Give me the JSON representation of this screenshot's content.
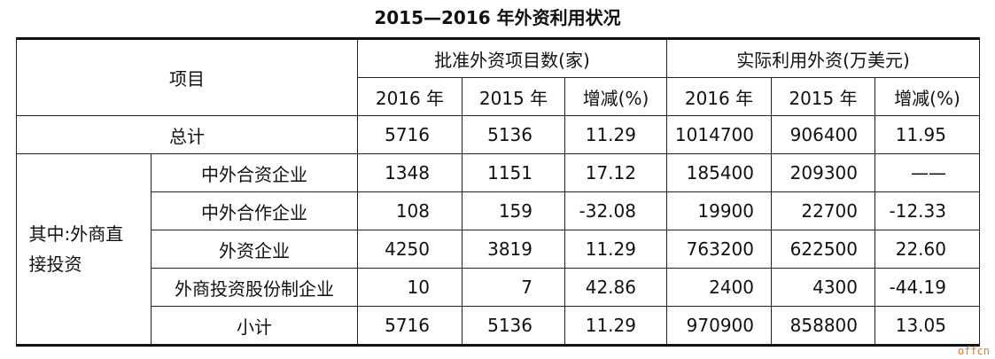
{
  "title": "2015—2016 年外资利用状况",
  "table": {
    "header": {
      "item": "项目",
      "group1": "批准外资项目数(家)",
      "group2": "实际利用外资(万美元)",
      "sub": [
        "2016 年",
        "2015 年",
        "增减(%)",
        "2016 年",
        "2015 年",
        "增减(%)"
      ]
    },
    "total": {
      "label": "总计",
      "values": [
        "5716",
        "5136",
        "11.29",
        "1014700",
        "906400",
        "11.95"
      ]
    },
    "group_label": "其中:外商直接投资",
    "rows": [
      {
        "label": "中外合资企业",
        "values": [
          "1348",
          "1151",
          "17.12",
          "185400",
          "209300",
          "——"
        ]
      },
      {
        "label": "中外合作企业",
        "values": [
          "108",
          "159",
          "-32.08",
          "19900",
          "22700",
          "-12.33"
        ]
      },
      {
        "label": "外资企业",
        "values": [
          "4250",
          "3819",
          "11.29",
          "763200",
          "622500",
          "22.60"
        ]
      },
      {
        "label": "外商投资股份制企业",
        "values": [
          "10",
          "7",
          "42.86",
          "2400",
          "4300",
          "-44.19"
        ]
      },
      {
        "label": "小计",
        "values": [
          "5716",
          "5136",
          "11.29",
          "970900",
          "858800",
          "13.05"
        ]
      }
    ]
  },
  "watermark": "offcn"
}
